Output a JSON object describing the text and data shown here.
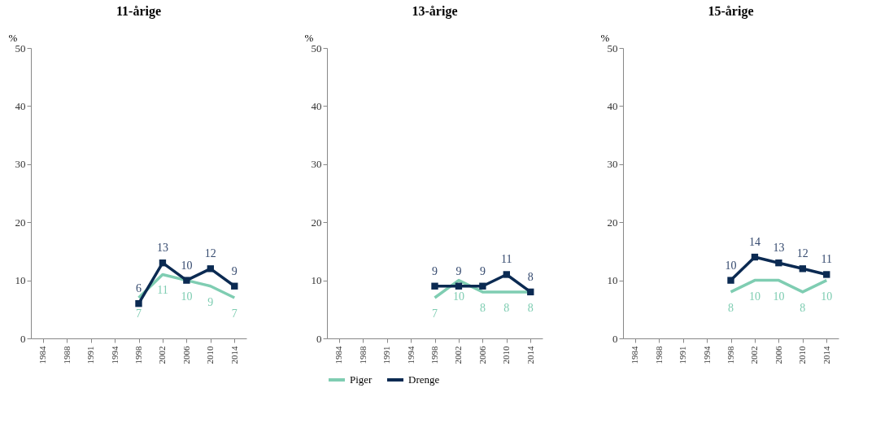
{
  "chart_data": [
    {
      "type": "line",
      "title": "11-årige",
      "ylabel": "%",
      "categories": [
        "1984",
        "1988",
        "1991",
        "1994",
        "1998",
        "2002",
        "2006",
        "2010",
        "2014"
      ],
      "ylim": [
        0,
        50
      ],
      "yticks": [
        0,
        10,
        20,
        30,
        40,
        50
      ],
      "grid": false,
      "data_labels": true,
      "series": [
        {
          "color": "#7fcdb2",
          "marker": "none",
          "values": [
            null,
            null,
            null,
            null,
            7,
            11,
            10,
            9,
            7
          ]
        },
        {
          "color": "#0b2a52",
          "marker": "square",
          "values": [
            null,
            null,
            null,
            null,
            6,
            13,
            10,
            12,
            9
          ]
        }
      ]
    },
    {
      "type": "line",
      "title": "13-årige",
      "ylabel": "%",
      "categories": [
        "1984",
        "1988",
        "1991",
        "1994",
        "1998",
        "2002",
        "2006",
        "2010",
        "2014"
      ],
      "ylim": [
        0,
        50
      ],
      "yticks": [
        0,
        10,
        20,
        30,
        40,
        50
      ],
      "grid": false,
      "data_labels": true,
      "legend": "bottom",
      "series": [
        {
          "name": "Piger",
          "color": "#7fcdb2",
          "marker": "none",
          "values": [
            null,
            null,
            null,
            null,
            7,
            10,
            8,
            8,
            8
          ]
        },
        {
          "name": "Drenge",
          "color": "#0b2a52",
          "marker": "square",
          "values": [
            null,
            null,
            null,
            null,
            9,
            9,
            9,
            11,
            8
          ]
        }
      ]
    },
    {
      "type": "line",
      "title": "15-årige",
      "ylabel": "%",
      "categories": [
        "1984",
        "1988",
        "1991",
        "1994",
        "1998",
        "2002",
        "2006",
        "2010",
        "2014"
      ],
      "ylim": [
        0,
        50
      ],
      "yticks": [
        0,
        10,
        20,
        30,
        40,
        50
      ],
      "grid": false,
      "data_labels": true,
      "series": [
        {
          "color": "#7fcdb2",
          "marker": "none",
          "values": [
            null,
            null,
            null,
            null,
            8,
            10,
            10,
            8,
            10
          ]
        },
        {
          "color": "#0b2a52",
          "marker": "square",
          "values": [
            null,
            null,
            null,
            null,
            10,
            14,
            13,
            12,
            11
          ]
        }
      ]
    }
  ]
}
